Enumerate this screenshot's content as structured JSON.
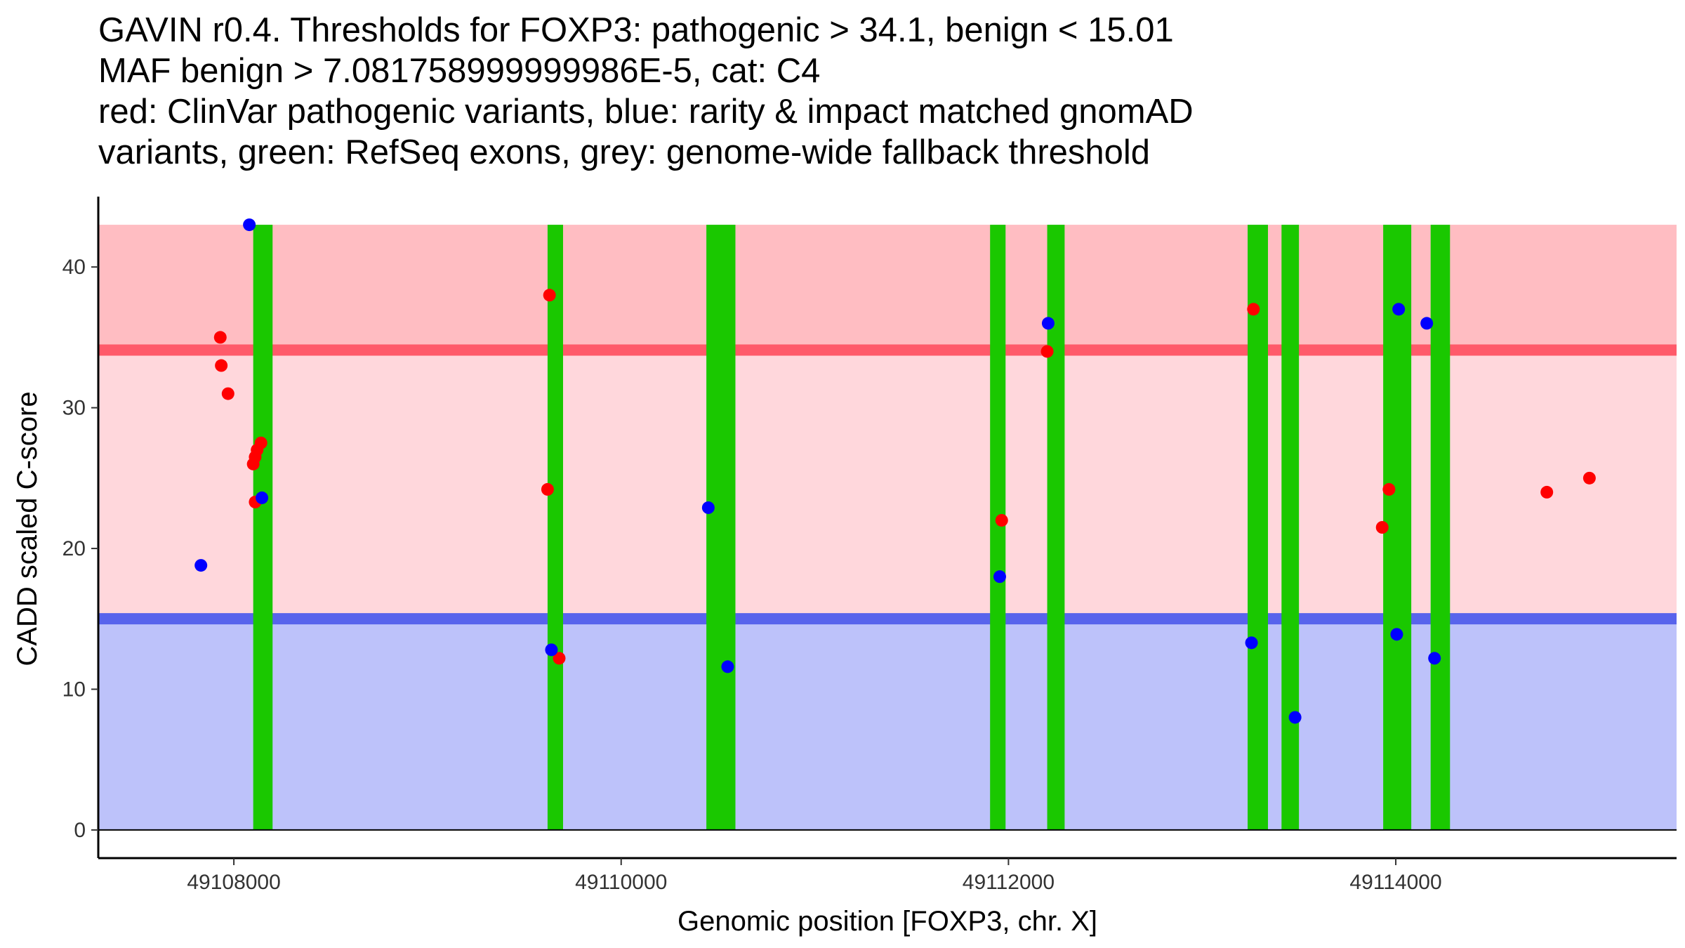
{
  "chart_data": {
    "type": "scatter",
    "title_lines": [
      "GAVIN r0.4. Thresholds for FOXP3: pathogenic > 34.1, benign < 15.01",
      "MAF benign > 7.081758999999986E-5, cat: C4",
      "red: ClinVar pathogenic variants, blue: rarity & impact matched gnomAD",
      "variants, green: RefSeq exons, grey: genome-wide fallback threshold"
    ],
    "xlabel": "Genomic position [FOXP3, chr. X]",
    "ylabel": "CADD scaled C-score",
    "xlim": [
      49107300,
      49115450
    ],
    "ylim": [
      -2,
      45
    ],
    "x_ticks": [
      49108000,
      49110000,
      49112000,
      49114000
    ],
    "y_ticks": [
      0,
      10,
      20,
      30,
      40
    ],
    "thresholds": {
      "pathogenic": 34.1,
      "benign": 15.01,
      "max": 43
    },
    "colors": {
      "pathogenic_variant": "#ff0000",
      "benign_variant": "#0000ff",
      "exon": "#1ac800",
      "pathogenic_zone": "#ffbdc2",
      "mid_zone": "#ffd7dc",
      "benign_zone": "#bdc2fa",
      "pathogenic_line": "#ff5a6a",
      "benign_line": "#5864ec"
    },
    "exons": [
      [
        49108100,
        49108200
      ],
      [
        49109620,
        49109700
      ],
      [
        49110440,
        49110590
      ],
      [
        49111905,
        49111985
      ],
      [
        49112200,
        49112290
      ],
      [
        49113235,
        49113340
      ],
      [
        49113410,
        49113500
      ],
      [
        49113935,
        49114080
      ],
      [
        49114180,
        49114280
      ]
    ],
    "series": [
      {
        "name": "ClinVar pathogenic variants",
        "color": "#ff0000",
        "points": [
          [
            49107930,
            35
          ],
          [
            49107935,
            33
          ],
          [
            49107970,
            31
          ],
          [
            49108100,
            26
          ],
          [
            49108110,
            26.5
          ],
          [
            49108120,
            27
          ],
          [
            49108140,
            27.5
          ],
          [
            49108110,
            23.3
          ],
          [
            49109630,
            38
          ],
          [
            49109620,
            24.2
          ],
          [
            49109680,
            12.2
          ],
          [
            49111965,
            22
          ],
          [
            49112200,
            34
          ],
          [
            49113265,
            37
          ],
          [
            49113930,
            21.5
          ],
          [
            49113965,
            24.2
          ],
          [
            49114780,
            24
          ],
          [
            49115000,
            25
          ]
        ]
      },
      {
        "name": "rarity & impact matched gnomAD variants",
        "color": "#0000ff",
        "points": [
          [
            49107830,
            18.8
          ],
          [
            49108080,
            43
          ],
          [
            49108145,
            23.6
          ],
          [
            49109640,
            12.8
          ],
          [
            49110450,
            22.9
          ],
          [
            49110550,
            11.6
          ],
          [
            49111955,
            18
          ],
          [
            49112205,
            36
          ],
          [
            49113255,
            13.3
          ],
          [
            49113480,
            8
          ],
          [
            49114015,
            37
          ],
          [
            49114005,
            13.9
          ],
          [
            49114160,
            36
          ],
          [
            49114200,
            12.2
          ]
        ]
      }
    ]
  }
}
